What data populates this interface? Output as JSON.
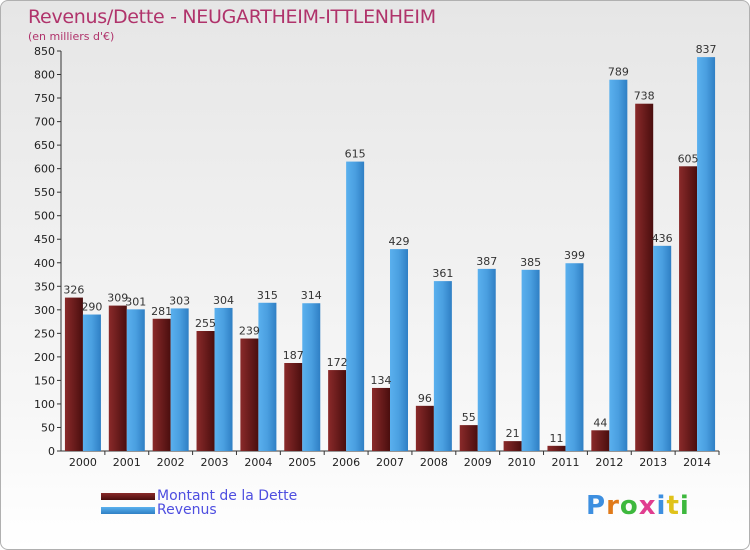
{
  "header": {
    "title": "Revenus/Dette - NEUGARTHEIM-ITTLENHEIM",
    "subtitle": "(en milliers d'€)"
  },
  "colors": {
    "dette": "#7a2424",
    "revenus": "#4a9fe0",
    "title": "#b0336b"
  },
  "legend": {
    "dette_label": "Montant de la Dette",
    "revenus_label": "Revenus"
  },
  "logo": {
    "text": "Proxiti"
  },
  "chart_data": {
    "type": "bar",
    "categories": [
      "2000",
      "2001",
      "2002",
      "2003",
      "2004",
      "2005",
      "2006",
      "2007",
      "2008",
      "2009",
      "2010",
      "2011",
      "2012",
      "2013",
      "2014"
    ],
    "series": [
      {
        "name": "Montant de la Dette",
        "values": [
          326,
          309,
          281,
          255,
          239,
          187,
          172,
          134,
          96,
          55,
          21,
          11,
          44,
          738,
          605
        ]
      },
      {
        "name": "Revenus",
        "values": [
          290,
          301,
          303,
          304,
          315,
          314,
          615,
          429,
          361,
          387,
          385,
          399,
          789,
          436,
          837
        ]
      }
    ],
    "ylim": [
      0,
      850
    ],
    "yticks": [
      0,
      50,
      100,
      150,
      200,
      250,
      300,
      350,
      400,
      450,
      500,
      550,
      600,
      650,
      700,
      750,
      800,
      850
    ],
    "grid": false
  }
}
